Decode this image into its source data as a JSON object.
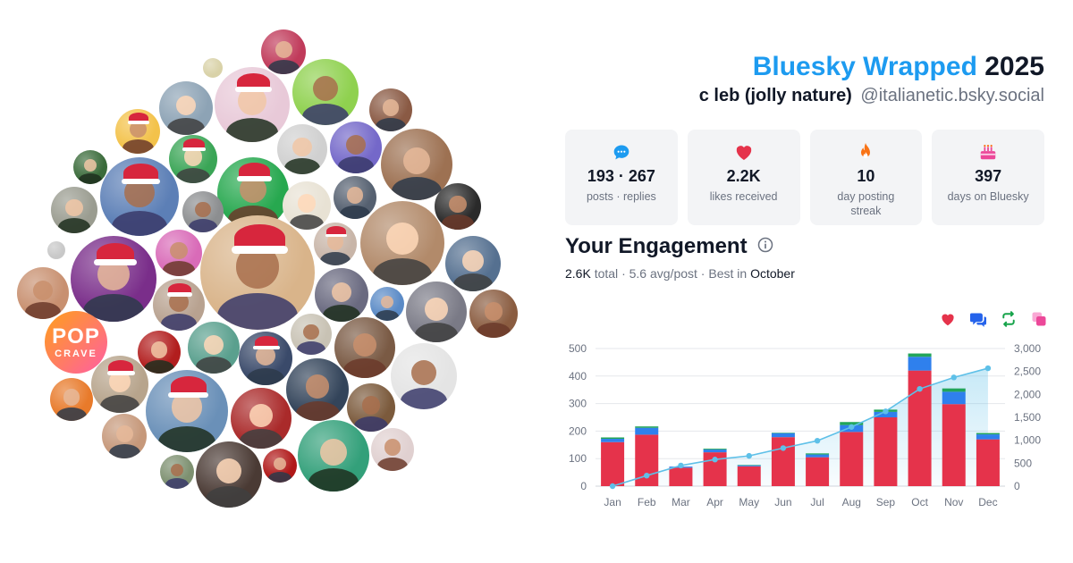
{
  "header": {
    "title_brand": "Bluesky Wrapped",
    "title_year": "2025",
    "display_name": "c  leb (jolly nature)",
    "handle": "@italianetic.bsky.social"
  },
  "stats": [
    {
      "icon": "chat-bubble-icon",
      "color": "#1d9bf0",
      "value": "193 · 267",
      "label": "posts · replies"
    },
    {
      "icon": "heart-icon",
      "color": "#e5334b",
      "value": "2.2K",
      "label": "likes received"
    },
    {
      "icon": "flame-icon",
      "color": "#f97316",
      "value": "10",
      "label": "day posting streak"
    },
    {
      "icon": "cake-icon",
      "color": "#ec4899",
      "value": "397",
      "label": "days on Bluesky"
    }
  ],
  "engagement": {
    "title": "Your Engagement",
    "total": "2.6K",
    "total_label": "total",
    "avg": "5.6 avg/post",
    "best_prefix": "Best in",
    "best_month": "October"
  },
  "legend_icons": [
    {
      "icon": "heart-icon",
      "color": "#e5334b"
    },
    {
      "icon": "reply-icon",
      "color": "#2563eb"
    },
    {
      "icon": "repost-icon",
      "color": "#16a34a"
    },
    {
      "icon": "quote-icon",
      "color": "#ec4899"
    }
  ],
  "avatar_cluster": {
    "logo_line1": "POP",
    "logo_line2": "CRAVE",
    "count": 52
  },
  "chart_data": {
    "type": "bar",
    "stacked": true,
    "categories": [
      "Jan",
      "Feb",
      "Mar",
      "Apr",
      "May",
      "Jun",
      "Jul",
      "Aug",
      "Sep",
      "Oct",
      "Nov",
      "Dec"
    ],
    "series": [
      {
        "color": "#e5334b",
        "values": [
          160,
          187,
          67,
          123,
          72,
          178,
          105,
          197,
          250,
          420,
          298,
          170
        ]
      },
      {
        "color": "#2f80ed",
        "values": [
          12,
          25,
          4,
          10,
          4,
          15,
          10,
          25,
          20,
          50,
          45,
          18
        ]
      },
      {
        "color": "#22a55a",
        "values": [
          5,
          5,
          0,
          3,
          1,
          1,
          4,
          11,
          8,
          12,
          12,
          5
        ]
      }
    ],
    "cumulative_line": {
      "color": "#5ec0e8",
      "values": [
        0,
        230,
        450,
        580,
        660,
        830,
        990,
        1290,
        1630,
        2120,
        2370,
        2570
      ]
    },
    "y_ticks_left": [
      "0",
      "100",
      "200",
      "300",
      "400",
      "500"
    ],
    "y_ticks_right": [
      "0",
      "500",
      "1,000",
      "1,500",
      "2,000",
      "2,500",
      "3,000"
    ],
    "ylim": [
      0,
      500
    ],
    "ylim_right": [
      0,
      3000
    ],
    "grid": true
  }
}
